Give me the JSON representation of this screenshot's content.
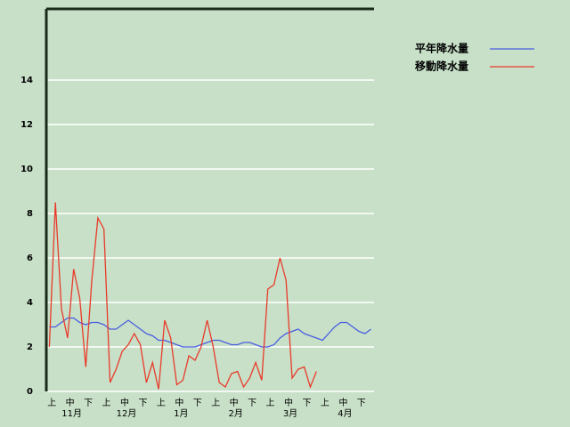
{
  "chart_data": {
    "type": "line",
    "categories": [
      null,
      "上",
      null,
      null,
      "中",
      null,
      null,
      "下",
      null,
      null,
      "上",
      null,
      null,
      "中",
      null,
      null,
      "下",
      null,
      null,
      "上",
      null,
      null,
      "中",
      null,
      null,
      "下",
      null,
      null,
      "上",
      null,
      null,
      "中",
      null,
      null,
      "下",
      null,
      null,
      "上",
      null,
      null,
      "中",
      null,
      null,
      "下",
      null,
      null,
      "上",
      null,
      null,
      "中",
      null,
      null,
      "下",
      null
    ],
    "months": [
      "11月",
      "12月",
      "1月",
      "2月",
      "3月",
      "4月"
    ],
    "series": [
      {
        "name": "平年降水量",
        "color": "#4a5ee0",
        "values": [
          2.9,
          2.9,
          3.1,
          3.3,
          3.3,
          3.1,
          3.0,
          3.1,
          3.1,
          3.0,
          2.8,
          2.8,
          3.0,
          3.2,
          3.0,
          2.8,
          2.6,
          2.5,
          2.3,
          2.3,
          2.2,
          2.1,
          2.0,
          2.0,
          2.0,
          2.1,
          2.2,
          2.3,
          2.3,
          2.2,
          2.1,
          2.1,
          2.2,
          2.2,
          2.1,
          2.0,
          2.0,
          2.1,
          2.4,
          2.6,
          2.7,
          2.8,
          2.6,
          2.5,
          2.4,
          2.3,
          2.6,
          2.9,
          3.1,
          3.1,
          2.9,
          2.7,
          2.6,
          2.8
        ]
      },
      {
        "name": "移動降水量",
        "color": "#e83a2a",
        "values": [
          2.0,
          8.5,
          3.7,
          2.4,
          5.5,
          4.2,
          1.1,
          5.0,
          7.8,
          7.3,
          0.4,
          1.0,
          1.8,
          2.1,
          2.6,
          2.1,
          0.4,
          1.3,
          0.1,
          3.2,
          2.4,
          0.3,
          0.5,
          1.6,
          1.4,
          2.0,
          3.2,
          2.0,
          0.4,
          0.2,
          0.8,
          0.9,
          0.2,
          0.6,
          1.3,
          0.5,
          4.6,
          4.8,
          6.0,
          5.0,
          0.6,
          1.0,
          1.1,
          0.2,
          0.9,
          null,
          null,
          null,
          null,
          null,
          null,
          null,
          null,
          null
        ]
      }
    ],
    "ylim": [
      0,
      17.2
    ],
    "yticks": [
      0,
      2,
      4,
      6,
      8,
      10,
      12,
      14
    ],
    "grid": true,
    "legend": "top-right"
  }
}
